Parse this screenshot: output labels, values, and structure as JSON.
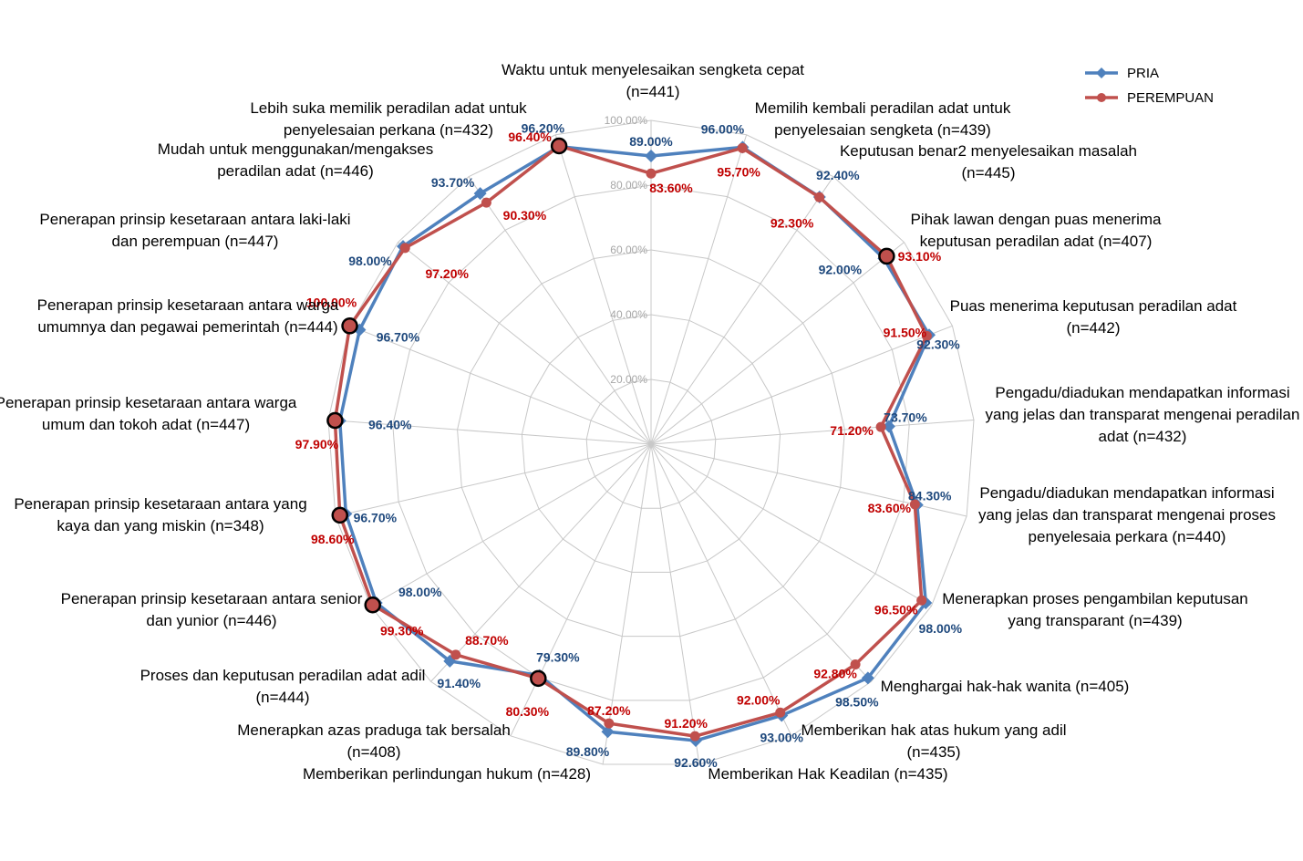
{
  "chart_data": {
    "type": "radar",
    "r_range": [
      0,
      100
    ],
    "r_ticks": [
      "20.00%",
      "40.00%",
      "60.00%",
      "80.00%",
      "100.00%"
    ],
    "grid": true,
    "legend_position": "top-right",
    "categories": [
      [
        "Waktu untuk menyelesaikan sengketa cepat",
        "(n=441)"
      ],
      [
        "Memilih kembali peradilan adat untuk",
        "penyelesaian sengketa (n=439)"
      ],
      [
        "Keputusan benar2 menyelesaikan masalah",
        "(n=445)"
      ],
      [
        "Pihak lawan dengan puas menerima",
        "keputusan peradilan adat (n=407)"
      ],
      [
        "Puas menerima keputusan peradilan adat",
        "(n=442)"
      ],
      [
        "Pengadu/diadukan mendapatkan informasi",
        "yang jelas dan transparat mengenai peradilan",
        "adat (n=432)"
      ],
      [
        "Pengadu/diadukan mendapatkan informasi",
        "yang jelas dan transparat mengenai proses",
        "penyelesaia perkara (n=440)"
      ],
      [
        "Menerapkan proses pengambilan keputusan",
        "yang transparant (n=439)"
      ],
      [
        "Menghargai hak-hak wanita (n=405)"
      ],
      [
        "Memberikan hak atas hukum yang adil",
        "(n=435)"
      ],
      [
        "Memberikan Hak Keadilan (n=435)"
      ],
      [
        "Memberikan perlindungan hukum (n=428)"
      ],
      [
        "Menerapkan azas praduga tak bersalah",
        "(n=408)"
      ],
      [
        "Proses dan keputusan peradilan adat adil",
        "(n=444)"
      ],
      [
        "Penerapan prinsip kesetaraan antara senior",
        "dan yunior (n=446)"
      ],
      [
        "Penerapan prinsip kesetaraan antara yang",
        "kaya dan yang miskin (n=348)"
      ],
      [
        "Penerapan prinsip kesetaraan antara warga",
        "umum dan tokoh adat (n=447)"
      ],
      [
        "Penerapan prinsip kesetaraan antara warga",
        "umumnya dan pegawai pemerintah (n=444)"
      ],
      [
        "Penerapan prinsip kesetaraan antara laki-laki",
        "dan perempuan (n=447)"
      ],
      [
        "Mudah untuk menggunakan/mengakses",
        "peradilan adat (n=446)"
      ],
      [
        "Lebih suka memilik peradilan adat untuk",
        "penyelesaian perkana (n=432)"
      ]
    ],
    "series": [
      {
        "name": "PRIA",
        "color": "#4f81bd",
        "label_color": "#1f497d",
        "marker": "diamond",
        "values": [
          89.0,
          96.0,
          92.4,
          92.0,
          92.3,
          73.7,
          84.3,
          98.0,
          98.5,
          93.0,
          92.6,
          89.8,
          79.3,
          91.4,
          98.0,
          96.7,
          96.4,
          96.7,
          98.0,
          93.7,
          96.2
        ],
        "labels": [
          "89.00%",
          "96.00%",
          "92.40%",
          "92.00%",
          "92.30%",
          "73.70%",
          "84.30%",
          "98.00%",
          "98.50%",
          "93.00%",
          "92.60%",
          "89.80%",
          "79.30%",
          "91.40%",
          "98.00%",
          "96.70%",
          "96.40%",
          "96.70%",
          "98.00%",
          "93.70%",
          "96.20%"
        ]
      },
      {
        "name": "PEREMPUAN",
        "color": "#c0504d",
        "label_color": "#c00000",
        "marker": "circle",
        "values": [
          83.6,
          95.7,
          92.3,
          93.1,
          91.5,
          71.2,
          83.6,
          96.5,
          92.8,
          92.0,
          91.2,
          87.2,
          80.3,
          88.7,
          99.3,
          98.6,
          97.9,
          100.0,
          97.2,
          90.3,
          96.4
        ],
        "labels": [
          "83.60%",
          "95.70%",
          "92.30%",
          "93.10%",
          "91.50%",
          "71.20%",
          "83.60%",
          "96.50%",
          "92.80%",
          "92.00%",
          "91.20%",
          "87.20%",
          "80.30%",
          "88.70%",
          "99.30%",
          "98.60%",
          "97.90%",
          "100.00%",
          "97.20%",
          "90.30%",
          "96.40%"
        ]
      }
    ]
  }
}
